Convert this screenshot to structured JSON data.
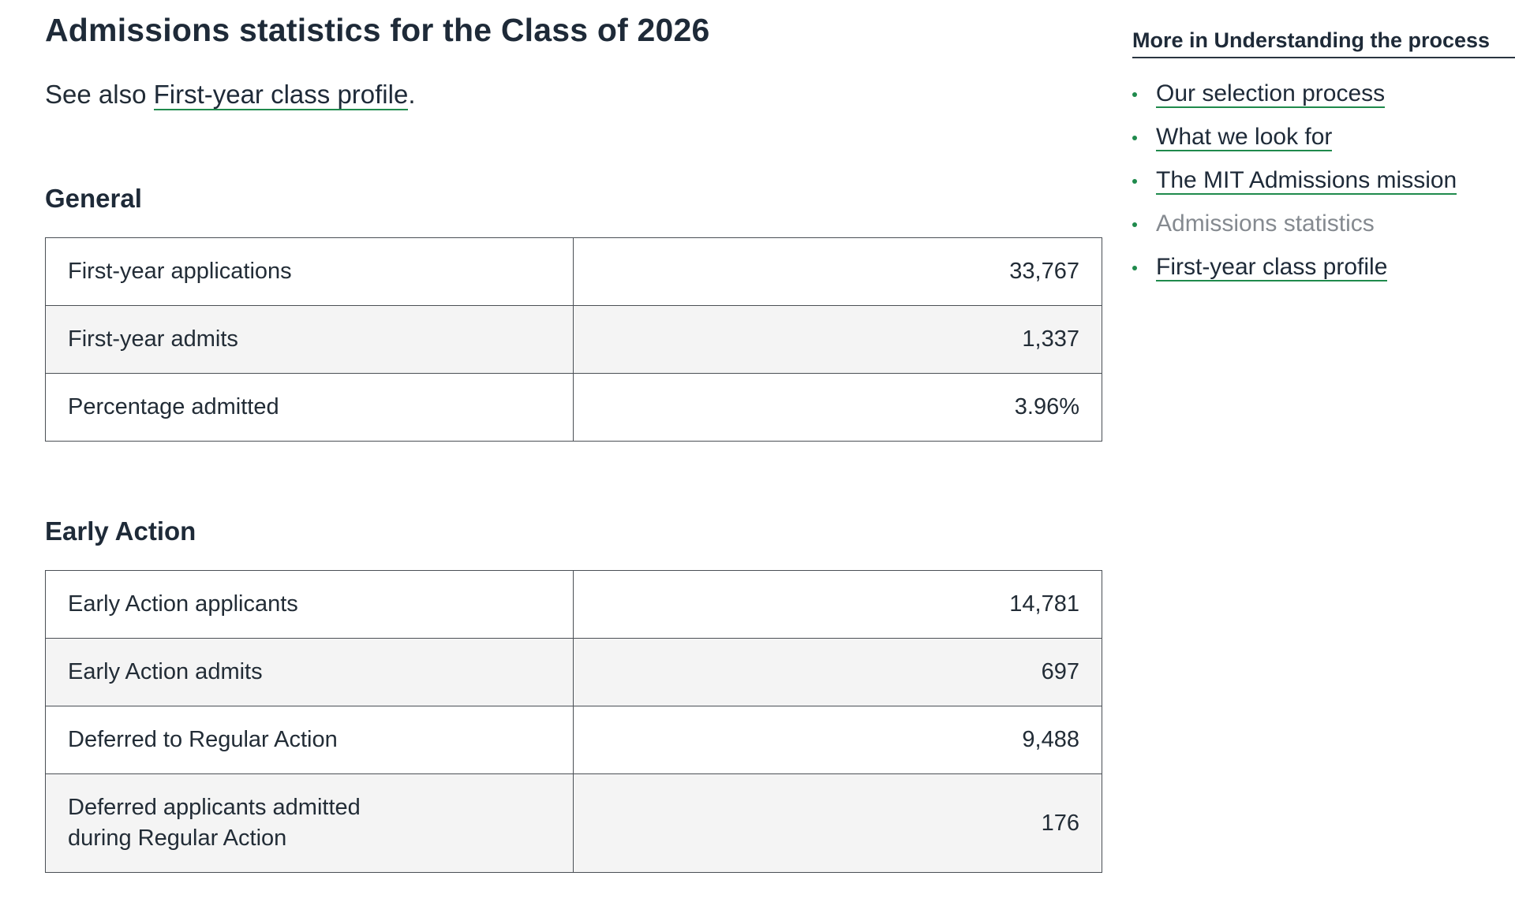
{
  "page": {
    "title": "Admissions statistics for the Class of 2026",
    "see_also_prefix": "See also ",
    "see_also_link": "First-year class profile",
    "see_also_suffix": "."
  },
  "sections": {
    "general": {
      "heading": "General",
      "rows": [
        {
          "label": "First-year applications",
          "value": "33,767"
        },
        {
          "label": "First-year admits",
          "value": "1,337"
        },
        {
          "label": "Percentage admitted",
          "value": "3.96%"
        }
      ]
    },
    "early_action": {
      "heading": "Early Action",
      "rows": [
        {
          "label": "Early Action applicants",
          "value": "14,781"
        },
        {
          "label": "Early Action admits",
          "value": "697"
        },
        {
          "label": "Deferred to Regular Action",
          "value": "9,488"
        },
        {
          "label": "Deferred applicants admitted\nduring Regular Action",
          "value": "176"
        }
      ]
    }
  },
  "sidebar": {
    "title": "More in Understanding the process",
    "items": [
      {
        "label": "Our selection process",
        "current": false
      },
      {
        "label": "What we look for",
        "current": false
      },
      {
        "label": "The MIT Admissions mission",
        "current": false
      },
      {
        "label": "Admissions statistics",
        "current": true
      },
      {
        "label": "First-year class profile",
        "current": false
      }
    ]
  },
  "colors": {
    "link_underline": "#1f8a4c",
    "bullet": "#1f8a4c",
    "current_item": "#858a90",
    "shaded_row": "#f4f4f4"
  }
}
